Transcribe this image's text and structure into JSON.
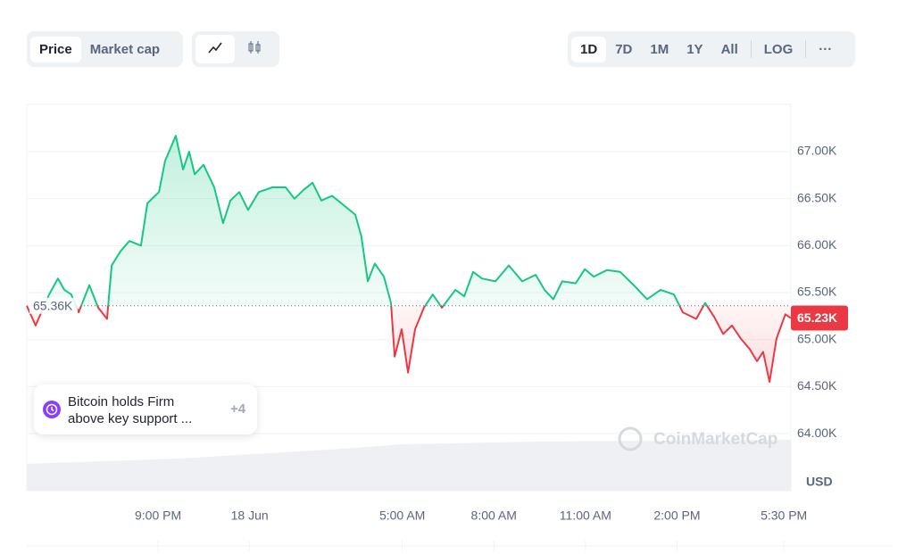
{
  "toolbar": {
    "tabs": [
      "Price",
      "Market cap"
    ],
    "ranges": [
      "1D",
      "7D",
      "1M",
      "1Y",
      "All",
      "LOG"
    ],
    "more": "···"
  },
  "news": {
    "text": "Bitcoin holds Firm above key support ...",
    "count": "+4"
  },
  "watermark": "CoinMarketCap",
  "chart_data": {
    "type": "line",
    "x": [
      -7.3,
      -7.01,
      -6.57,
      -6.28,
      -6.07,
      -5.84,
      -5.6,
      -5.25,
      -4.96,
      -4.67,
      -4.52,
      -4.23,
      -3.94,
      -3.56,
      -3.35,
      -2.97,
      -2.77,
      -2.42,
      -2.18,
      -1.98,
      -1.8,
      -1.51,
      -1.16,
      -0.87,
      -0.63,
      -0.34,
      -0.05,
      0.3,
      0.74,
      1.18,
      1.47,
      1.76,
      2.06,
      2.35,
      2.7,
      3.08,
      3.46,
      3.66,
      3.87,
      4.1,
      4.4,
      4.63,
      4.75,
      4.98,
      5.19,
      5.42,
      5.71,
      6.0,
      6.3,
      6.74,
      7.03,
      7.32,
      7.61,
      8.05,
      8.49,
      8.93,
      9.37,
      9.66,
      9.95,
      10.24,
      10.68,
      10.98,
      11.27,
      11.71,
      12.14,
      12.58,
      13.02,
      13.46,
      13.9,
      14.19,
      14.63,
      14.92,
      15.22,
      15.51,
      15.8,
      16.09,
      16.38,
      16.62,
      16.82,
      17.03,
      17.26,
      17.55,
      17.73
    ],
    "values": [
      65360,
      65150,
      65480,
      65650,
      65530,
      65480,
      65290,
      65580,
      65340,
      65220,
      65790,
      65940,
      66050,
      66000,
      66450,
      66570,
      66900,
      67170,
      66810,
      67000,
      66760,
      66860,
      66620,
      66240,
      66480,
      66570,
      66380,
      66570,
      66620,
      66620,
      66500,
      66590,
      66670,
      66480,
      66530,
      66430,
      66330,
      66100,
      65620,
      65810,
      65670,
      65390,
      64820,
      65110,
      64650,
      65110,
      65340,
      65480,
      65340,
      65530,
      65460,
      65720,
      65650,
      65620,
      65790,
      65620,
      65690,
      65530,
      65430,
      65620,
      65600,
      65750,
      65670,
      65740,
      65720,
      65580,
      65430,
      65530,
      65480,
      65290,
      65220,
      65390,
      65240,
      65060,
      65150,
      65010,
      64900,
      64770,
      64870,
      64550,
      65010,
      65270,
      65230
    ],
    "xlim": [
      -7.3,
      17.73
    ],
    "xticks": [
      {
        "value": -3,
        "label": "9:00 PM"
      },
      {
        "value": 0,
        "label": "18 Jun"
      },
      {
        "value": 5,
        "label": "5:00 AM"
      },
      {
        "value": 8,
        "label": "8:00 AM"
      },
      {
        "value": 11,
        "label": "11:00 AM"
      },
      {
        "value": 14,
        "label": "2:00 PM"
      },
      {
        "value": 17.5,
        "label": "5:30 PM"
      }
    ],
    "ylim": [
      63393,
      67503
    ],
    "yticks": [
      {
        "value": 64000,
        "label": "64.00K"
      },
      {
        "value": 64500,
        "label": "64.50K"
      },
      {
        "value": 65000,
        "label": "65.00K"
      },
      {
        "value": 65500,
        "label": "65.50K"
      },
      {
        "value": 66000,
        "label": "66.00K"
      },
      {
        "value": 66500,
        "label": "66.50K"
      },
      {
        "value": 67000,
        "label": "67.00K"
      }
    ],
    "ylabel": "USD",
    "baseline": {
      "value": 65360,
      "label": "65.36K"
    },
    "last_price": {
      "value": 65230,
      "label": "65.23K"
    },
    "colors": {
      "up": "#16c784",
      "down": "#ea3943"
    },
    "grid": true
  }
}
